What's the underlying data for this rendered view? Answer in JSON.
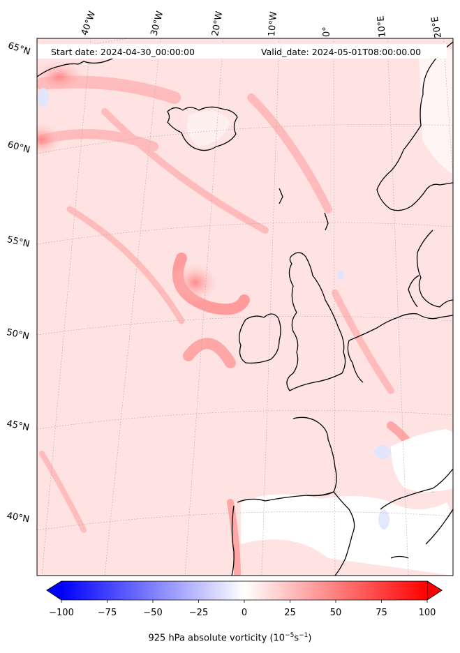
{
  "header": {
    "start_date": "Start date: 2024-04-30_00:00:00",
    "valid_date": "Valid_date: 2024-05-01T08:00:00.00"
  },
  "longitude_labels": [
    "40°W",
    "30°W",
    "20°W",
    "10°W",
    "0°",
    "10°E",
    "20°E"
  ],
  "latitude_labels": [
    "65°N",
    "60°N",
    "55°N",
    "50°N",
    "45°N",
    "40°N"
  ],
  "colorbar": {
    "ticks": [
      "−100",
      "−75",
      "−50",
      "−25",
      "0",
      "25",
      "50",
      "75",
      "100"
    ],
    "min": -100,
    "max": 100,
    "colors": {
      "negative": "#0000ff",
      "zero": "#ffffff",
      "positive": "#ff0000"
    },
    "label_text": "925 hPa absolute vorticity (10",
    "label_exp1": "−5",
    "label_mid": "s",
    "label_exp2": "−1",
    "label_close": ")"
  }
}
